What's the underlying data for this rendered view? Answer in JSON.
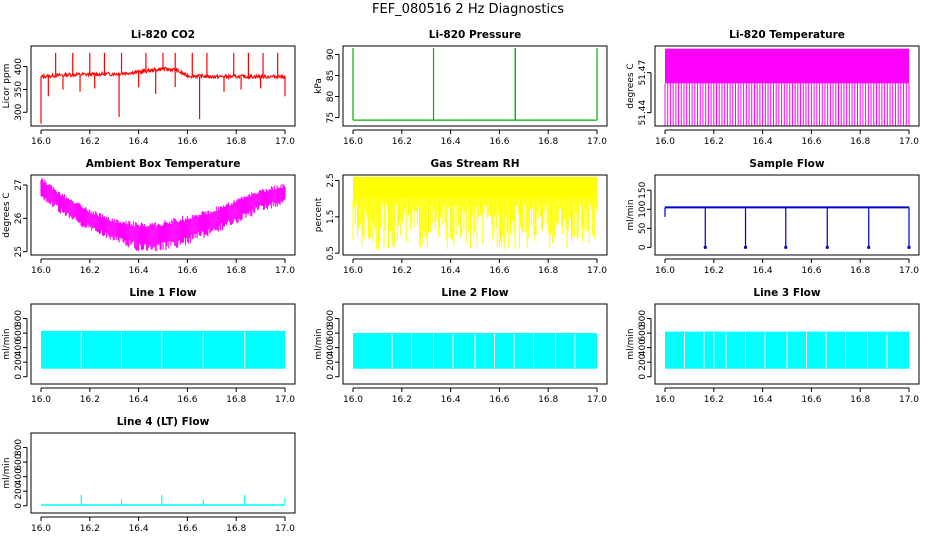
{
  "figure": {
    "title": "FEF_080516  2 Hz Diagnostics"
  },
  "chart_data": [
    {
      "id": "co2",
      "type": "line",
      "title": "Li-820 CO2",
      "ylabel": "Licor ppm",
      "color": "#ff0000",
      "xlim": [
        16.0,
        17.0
      ],
      "ylim": [
        270,
        445
      ],
      "xticks": [
        "16.0",
        "16.2",
        "16.4",
        "16.6",
        "16.8",
        "17.0"
      ],
      "yticks": [
        300,
        350,
        400
      ],
      "baseline": [
        [
          16.0,
          378
        ],
        [
          16.1,
          382
        ],
        [
          16.2,
          383
        ],
        [
          16.3,
          384
        ],
        [
          16.4,
          388
        ],
        [
          16.5,
          395
        ],
        [
          16.55,
          393
        ],
        [
          16.6,
          380
        ],
        [
          16.7,
          378
        ],
        [
          16.8,
          378
        ],
        [
          16.9,
          378
        ],
        [
          17.0,
          378
        ]
      ],
      "spikes_up": [
        16.06,
        16.13,
        16.2,
        16.26,
        16.33,
        16.43,
        16.5,
        16.55,
        16.62,
        16.68,
        16.79,
        16.85,
        16.91,
        16.97
      ],
      "spikes_up_to": 430,
      "spikes_down": [
        [
          16.0,
          275
        ],
        [
          16.03,
          335
        ],
        [
          16.09,
          350
        ],
        [
          16.16,
          345
        ],
        [
          16.22,
          352
        ],
        [
          16.32,
          290
        ],
        [
          16.4,
          355
        ],
        [
          16.47,
          340
        ],
        [
          16.55,
          355
        ],
        [
          16.65,
          285
        ],
        [
          16.75,
          345
        ],
        [
          16.82,
          350
        ],
        [
          16.9,
          352
        ],
        [
          17.0,
          335
        ]
      ]
    },
    {
      "id": "pressure",
      "type": "line",
      "title": "Li-820 Pressure",
      "ylabel": "kPa",
      "color": "#00b000",
      "xlim": [
        16.0,
        17.0
      ],
      "ylim": [
        73,
        92
      ],
      "xticks": [
        "16.0",
        "16.2",
        "16.4",
        "16.6",
        "16.8",
        "17.0"
      ],
      "yticks": [
        75,
        80,
        85,
        90
      ],
      "baseline_value": 74.4,
      "spikes_up": [
        16.0,
        16.33,
        16.665,
        16.665,
        17.0
      ],
      "spikes_up_to": 91.5
    },
    {
      "id": "licor_temp",
      "type": "area",
      "title": "Li-820 Temperature",
      "ylabel": "degrees C",
      "color": "#ff00ff",
      "xlim": [
        16.0,
        17.0
      ],
      "ylim": [
        51.43,
        51.49
      ],
      "xticks": [
        "16.0",
        "16.2",
        "16.4",
        "16.6",
        "16.8",
        "17.0"
      ],
      "yticks": [
        51.44,
        51.47
      ],
      "low": 51.43,
      "high": 51.488,
      "mid": 51.462
    },
    {
      "id": "box_temp",
      "type": "area",
      "title": "Ambient Box Temperature",
      "ylabel": "degrees C",
      "color": "#ff00ff",
      "xlim": [
        16.0,
        17.0
      ],
      "ylim": [
        24.9,
        27.3
      ],
      "xticks": [
        "16.0",
        "16.2",
        "16.4",
        "16.6",
        "16.8",
        "17.0"
      ],
      "yticks": [
        25.0,
        26.0,
        27.0
      ],
      "upper": [
        [
          16.0,
          27.25
        ],
        [
          16.1,
          26.7
        ],
        [
          16.2,
          26.3
        ],
        [
          16.3,
          26.0
        ],
        [
          16.4,
          25.9
        ],
        [
          16.5,
          25.95
        ],
        [
          16.6,
          26.1
        ],
        [
          16.7,
          26.3
        ],
        [
          16.8,
          26.6
        ],
        [
          16.9,
          26.9
        ],
        [
          17.0,
          27.05
        ]
      ],
      "lower": [
        [
          16.0,
          26.6
        ],
        [
          16.1,
          26.0
        ],
        [
          16.2,
          25.6
        ],
        [
          16.3,
          25.3
        ],
        [
          16.4,
          25.0
        ],
        [
          16.5,
          25.0
        ],
        [
          16.6,
          25.2
        ],
        [
          16.7,
          25.5
        ],
        [
          16.8,
          25.8
        ],
        [
          16.9,
          26.2
        ],
        [
          17.0,
          26.4
        ]
      ]
    },
    {
      "id": "rh",
      "type": "area",
      "title": "Gas Stream RH",
      "ylabel": "percent",
      "color": "#ffff00",
      "xlim": [
        16.0,
        17.0
      ],
      "ylim": [
        0.45,
        2.65
      ],
      "xticks": [
        "16.0",
        "16.2",
        "16.4",
        "16.6",
        "16.8",
        "17.0"
      ],
      "yticks": [
        0.5,
        1.5,
        2.5
      ],
      "low": 0.6,
      "high": 2.6,
      "mid": 2.0
    },
    {
      "id": "sample_flow",
      "type": "line",
      "title": "Sample Flow",
      "ylabel": "ml/min",
      "color": "#0000cc",
      "xlim": [
        16.0,
        17.0
      ],
      "ylim": [
        -20,
        190
      ],
      "xticks": [
        "16.0",
        "16.2",
        "16.4",
        "16.6",
        "16.8",
        "17.0"
      ],
      "yticks": [
        0,
        50,
        100,
        150
      ],
      "baseline_value": 105,
      "spikes_down": [
        16.165,
        16.33,
        16.495,
        16.665,
        16.835,
        17.0
      ],
      "spikes_down_to": 0
    },
    {
      "id": "line1",
      "type": "area",
      "title": "Line 1 Flow",
      "ylabel": "ml/min",
      "color": "#00ffff",
      "xlim": [
        16.0,
        17.0
      ],
      "ylim": [
        -100,
        1000
      ],
      "xticks": [
        "16.0",
        "16.2",
        "16.4",
        "16.6",
        "16.8",
        "17.0"
      ],
      "yticks": [
        0,
        200,
        400,
        600,
        800
      ],
      "low": 110,
      "high": 630,
      "gaps": [
        16.165,
        16.33,
        16.495,
        16.665,
        16.835
      ]
    },
    {
      "id": "line2",
      "type": "area",
      "title": "Line 2 Flow",
      "ylabel": "ml/min",
      "color": "#00ffff",
      "xlim": [
        16.0,
        17.0
      ],
      "ylim": [
        -100,
        1000
      ],
      "xticks": [
        "16.0",
        "16.2",
        "16.4",
        "16.6",
        "16.8",
        "17.0"
      ],
      "yticks": [
        0,
        200,
        400,
        600,
        800
      ],
      "low": 110,
      "high": 600,
      "gaps": [
        16.16,
        16.24,
        16.33,
        16.41,
        16.5,
        16.58,
        16.66,
        16.74,
        16.83,
        16.91
      ]
    },
    {
      "id": "line3",
      "type": "area",
      "title": "Line 3 Flow",
      "ylabel": "ml/min",
      "color": "#00ffff",
      "xlim": [
        16.0,
        17.0
      ],
      "ylim": [
        -100,
        1000
      ],
      "xticks": [
        "16.0",
        "16.2",
        "16.4",
        "16.6",
        "16.8",
        "17.0"
      ],
      "yticks": [
        0,
        200,
        400,
        600,
        800
      ],
      "low": 110,
      "high": 620,
      "gaps": [
        16.08,
        16.16,
        16.2,
        16.25,
        16.33,
        16.41,
        16.5,
        16.58,
        16.66,
        16.74,
        16.83,
        16.91
      ]
    },
    {
      "id": "line4",
      "type": "line",
      "title": "Line 4 (LT) Flow",
      "ylabel": "ml/min",
      "color": "#00ffff",
      "xlim": [
        16.0,
        17.0
      ],
      "ylim": [
        -100,
        1000
      ],
      "xticks": [
        "16.0",
        "16.2",
        "16.4",
        "16.6",
        "16.8",
        "17.0"
      ],
      "yticks": [
        0,
        200,
        400,
        600,
        800
      ],
      "baseline_value": 10,
      "spikes_up": [
        [
          16.165,
          150
        ],
        [
          16.33,
          90
        ],
        [
          16.495,
          150
        ],
        [
          16.665,
          90
        ],
        [
          16.835,
          150
        ],
        [
          17.0,
          110
        ]
      ]
    }
  ]
}
